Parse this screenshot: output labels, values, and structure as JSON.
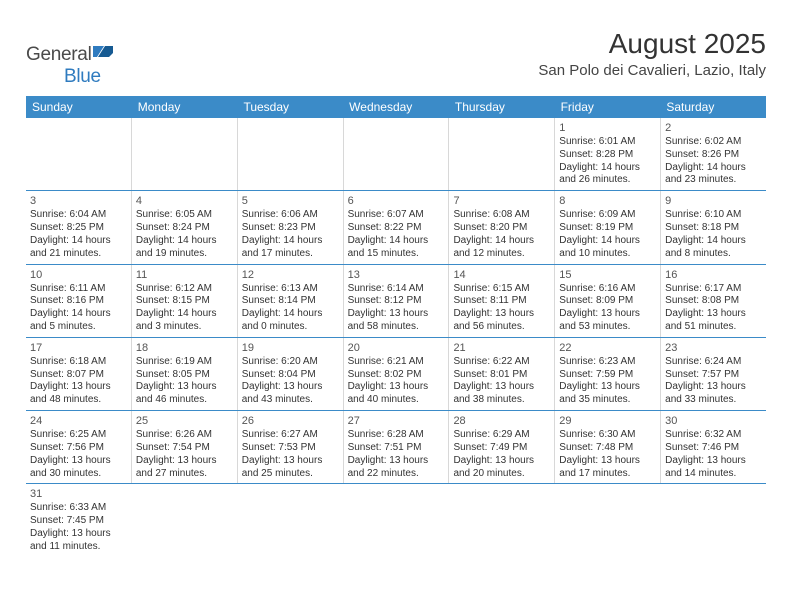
{
  "logo": {
    "word1": "General",
    "word2": "Blue"
  },
  "title": "August 2025",
  "location": "San Polo dei Cavalieri, Lazio, Italy",
  "colors": {
    "header_bg": "#3b8bc8",
    "header_text": "#ffffff",
    "border": "#3b8bc8",
    "cell_border": "#d8d8d8",
    "text": "#333333",
    "logo_gray": "#4a4a4a",
    "logo_blue": "#2f7bbf"
  },
  "day_headers": [
    "Sunday",
    "Monday",
    "Tuesday",
    "Wednesday",
    "Thursday",
    "Friday",
    "Saturday"
  ],
  "weeks": [
    [
      null,
      null,
      null,
      null,
      null,
      {
        "n": "1",
        "sr": "6:01 AM",
        "ss": "8:28 PM",
        "dl1": "14 hours",
        "dl2": "and 26 minutes."
      },
      {
        "n": "2",
        "sr": "6:02 AM",
        "ss": "8:26 PM",
        "dl1": "14 hours",
        "dl2": "and 23 minutes."
      }
    ],
    [
      {
        "n": "3",
        "sr": "6:04 AM",
        "ss": "8:25 PM",
        "dl1": "14 hours",
        "dl2": "and 21 minutes."
      },
      {
        "n": "4",
        "sr": "6:05 AM",
        "ss": "8:24 PM",
        "dl1": "14 hours",
        "dl2": "and 19 minutes."
      },
      {
        "n": "5",
        "sr": "6:06 AM",
        "ss": "8:23 PM",
        "dl1": "14 hours",
        "dl2": "and 17 minutes."
      },
      {
        "n": "6",
        "sr": "6:07 AM",
        "ss": "8:22 PM",
        "dl1": "14 hours",
        "dl2": "and 15 minutes."
      },
      {
        "n": "7",
        "sr": "6:08 AM",
        "ss": "8:20 PM",
        "dl1": "14 hours",
        "dl2": "and 12 minutes."
      },
      {
        "n": "8",
        "sr": "6:09 AM",
        "ss": "8:19 PM",
        "dl1": "14 hours",
        "dl2": "and 10 minutes."
      },
      {
        "n": "9",
        "sr": "6:10 AM",
        "ss": "8:18 PM",
        "dl1": "14 hours",
        "dl2": "and 8 minutes."
      }
    ],
    [
      {
        "n": "10",
        "sr": "6:11 AM",
        "ss": "8:16 PM",
        "dl1": "14 hours",
        "dl2": "and 5 minutes."
      },
      {
        "n": "11",
        "sr": "6:12 AM",
        "ss": "8:15 PM",
        "dl1": "14 hours",
        "dl2": "and 3 minutes."
      },
      {
        "n": "12",
        "sr": "6:13 AM",
        "ss": "8:14 PM",
        "dl1": "14 hours",
        "dl2": "and 0 minutes."
      },
      {
        "n": "13",
        "sr": "6:14 AM",
        "ss": "8:12 PM",
        "dl1": "13 hours",
        "dl2": "and 58 minutes."
      },
      {
        "n": "14",
        "sr": "6:15 AM",
        "ss": "8:11 PM",
        "dl1": "13 hours",
        "dl2": "and 56 minutes."
      },
      {
        "n": "15",
        "sr": "6:16 AM",
        "ss": "8:09 PM",
        "dl1": "13 hours",
        "dl2": "and 53 minutes."
      },
      {
        "n": "16",
        "sr": "6:17 AM",
        "ss": "8:08 PM",
        "dl1": "13 hours",
        "dl2": "and 51 minutes."
      }
    ],
    [
      {
        "n": "17",
        "sr": "6:18 AM",
        "ss": "8:07 PM",
        "dl1": "13 hours",
        "dl2": "and 48 minutes."
      },
      {
        "n": "18",
        "sr": "6:19 AM",
        "ss": "8:05 PM",
        "dl1": "13 hours",
        "dl2": "and 46 minutes."
      },
      {
        "n": "19",
        "sr": "6:20 AM",
        "ss": "8:04 PM",
        "dl1": "13 hours",
        "dl2": "and 43 minutes."
      },
      {
        "n": "20",
        "sr": "6:21 AM",
        "ss": "8:02 PM",
        "dl1": "13 hours",
        "dl2": "and 40 minutes."
      },
      {
        "n": "21",
        "sr": "6:22 AM",
        "ss": "8:01 PM",
        "dl1": "13 hours",
        "dl2": "and 38 minutes."
      },
      {
        "n": "22",
        "sr": "6:23 AM",
        "ss": "7:59 PM",
        "dl1": "13 hours",
        "dl2": "and 35 minutes."
      },
      {
        "n": "23",
        "sr": "6:24 AM",
        "ss": "7:57 PM",
        "dl1": "13 hours",
        "dl2": "and 33 minutes."
      }
    ],
    [
      {
        "n": "24",
        "sr": "6:25 AM",
        "ss": "7:56 PM",
        "dl1": "13 hours",
        "dl2": "and 30 minutes."
      },
      {
        "n": "25",
        "sr": "6:26 AM",
        "ss": "7:54 PM",
        "dl1": "13 hours",
        "dl2": "and 27 minutes."
      },
      {
        "n": "26",
        "sr": "6:27 AM",
        "ss": "7:53 PM",
        "dl1": "13 hours",
        "dl2": "and 25 minutes."
      },
      {
        "n": "27",
        "sr": "6:28 AM",
        "ss": "7:51 PM",
        "dl1": "13 hours",
        "dl2": "and 22 minutes."
      },
      {
        "n": "28",
        "sr": "6:29 AM",
        "ss": "7:49 PM",
        "dl1": "13 hours",
        "dl2": "and 20 minutes."
      },
      {
        "n": "29",
        "sr": "6:30 AM",
        "ss": "7:48 PM",
        "dl1": "13 hours",
        "dl2": "and 17 minutes."
      },
      {
        "n": "30",
        "sr": "6:32 AM",
        "ss": "7:46 PM",
        "dl1": "13 hours",
        "dl2": "and 14 minutes."
      }
    ],
    [
      {
        "n": "31",
        "sr": "6:33 AM",
        "ss": "7:45 PM",
        "dl1": "13 hours",
        "dl2": "and 11 minutes."
      },
      null,
      null,
      null,
      null,
      null,
      null
    ]
  ],
  "labels": {
    "sunrise": "Sunrise:",
    "sunset": "Sunset:",
    "daylight": "Daylight:"
  }
}
